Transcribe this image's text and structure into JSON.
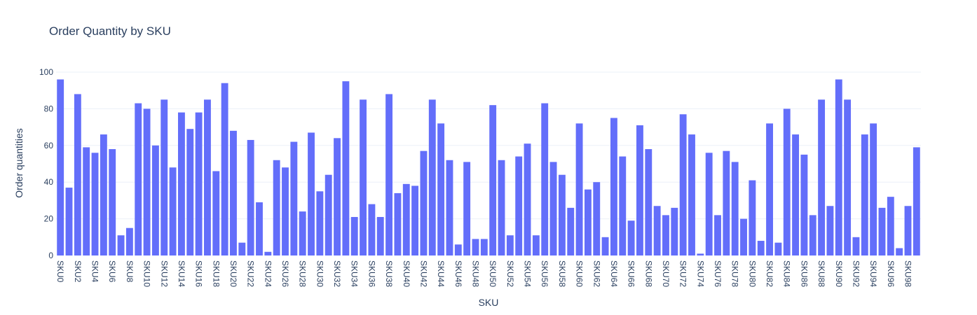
{
  "chart_data": {
    "type": "bar",
    "title": "Order Quantity by SKU",
    "xlabel": "SKU",
    "ylabel": "Order quantities",
    "ylim": [
      0,
      100
    ],
    "yticks": [
      0,
      20,
      40,
      60,
      80,
      100
    ],
    "grid": true,
    "colors": {
      "bar": "#636efa",
      "grid": "#ebf0f8",
      "text": "#2a3f5f"
    },
    "categories": [
      "SKU0",
      "SKU1",
      "SKU2",
      "SKU3",
      "SKU4",
      "SKU5",
      "SKU6",
      "SKU7",
      "SKU8",
      "SKU9",
      "SKU10",
      "SKU11",
      "SKU12",
      "SKU13",
      "SKU14",
      "SKU15",
      "SKU16",
      "SKU17",
      "SKU18",
      "SKU19",
      "SKU20",
      "SKU21",
      "SKU22",
      "SKU23",
      "SKU24",
      "SKU25",
      "SKU26",
      "SKU27",
      "SKU28",
      "SKU29",
      "SKU30",
      "SKU31",
      "SKU32",
      "SKU33",
      "SKU34",
      "SKU35",
      "SKU36",
      "SKU37",
      "SKU38",
      "SKU39",
      "SKU40",
      "SKU41",
      "SKU42",
      "SKU43",
      "SKU44",
      "SKU45",
      "SKU46",
      "SKU47",
      "SKU48",
      "SKU49",
      "SKU50",
      "SKU51",
      "SKU52",
      "SKU53",
      "SKU54",
      "SKU55",
      "SKU56",
      "SKU57",
      "SKU58",
      "SKU59",
      "SKU60",
      "SKU61",
      "SKU62",
      "SKU63",
      "SKU64",
      "SKU65",
      "SKU66",
      "SKU67",
      "SKU68",
      "SKU69",
      "SKU70",
      "SKU71",
      "SKU72",
      "SKU73",
      "SKU74",
      "SKU75",
      "SKU76",
      "SKU77",
      "SKU78",
      "SKU79",
      "SKU80",
      "SKU81",
      "SKU82",
      "SKU83",
      "SKU84",
      "SKU85",
      "SKU86",
      "SKU87",
      "SKU88",
      "SKU89",
      "SKU90",
      "SKU91",
      "SKU92",
      "SKU93",
      "SKU94",
      "SKU95",
      "SKU96",
      "SKU97",
      "SKU98",
      "SKU99"
    ],
    "values": [
      96,
      37,
      88,
      59,
      56,
      66,
      58,
      11,
      15,
      83,
      80,
      60,
      85,
      48,
      78,
      69,
      78,
      85,
      46,
      94,
      68,
      7,
      63,
      29,
      2,
      52,
      48,
      62,
      24,
      67,
      35,
      44,
      64,
      95,
      21,
      85,
      28,
      21,
      88,
      34,
      39,
      38,
      57,
      85,
      72,
      52,
      6,
      51,
      9,
      9,
      82,
      52,
      11,
      54,
      61,
      11,
      83,
      51,
      44,
      26,
      72,
      36,
      40,
      10,
      75,
      54,
      19,
      71,
      58,
      27,
      22,
      26,
      77,
      66,
      1,
      56,
      22,
      57,
      51,
      20,
      41,
      8,
      72,
      7,
      80,
      66,
      55,
      22,
      85,
      27,
      96,
      85,
      10,
      66,
      72,
      26,
      32,
      4,
      27,
      59
    ],
    "tick_labels": [
      "SKU0",
      "SKU2",
      "SKU4",
      "SKU6",
      "SKU8",
      "SKU10",
      "SKU12",
      "SKU14",
      "SKU16",
      "SKU18",
      "SKU20",
      "SKU22",
      "SKU24",
      "SKU26",
      "SKU28",
      "SKU30",
      "SKU32",
      "SKU34",
      "SKU36",
      "SKU38",
      "SKU40",
      "SKU42",
      "SKU44",
      "SKU46",
      "SKU48",
      "SKU50",
      "SKU52",
      "SKU54",
      "SKU56",
      "SKU58",
      "SKU60",
      "SKU62",
      "SKU64",
      "SKU66",
      "SKU68",
      "SKU70",
      "SKU72",
      "SKU74",
      "SKU76",
      "SKU78",
      "SKU80",
      "SKU82",
      "SKU84",
      "SKU86",
      "SKU88",
      "SKU90",
      "SKU92",
      "SKU94",
      "SKU96",
      "SKU98"
    ]
  }
}
